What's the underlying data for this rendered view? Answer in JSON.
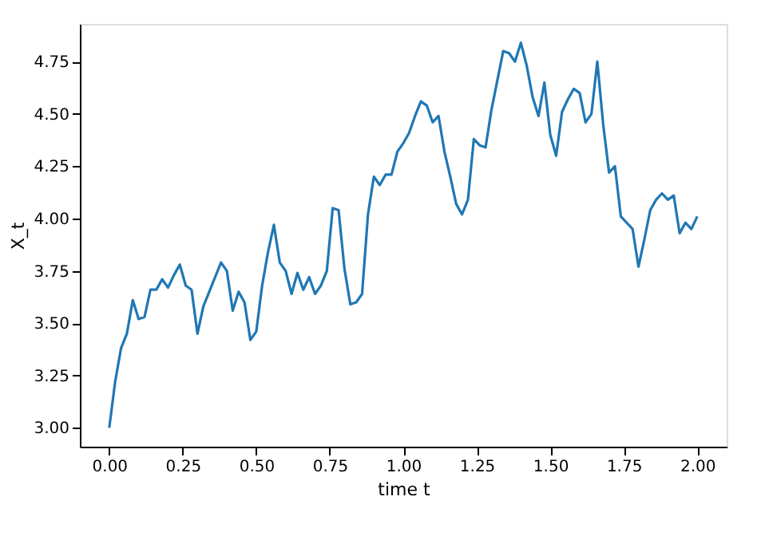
{
  "chart_data": {
    "type": "line",
    "xlabel": "time t",
    "ylabel": "X_t",
    "x": [
      0.0,
      0.02,
      0.04,
      0.06,
      0.08,
      0.1,
      0.12,
      0.14,
      0.16,
      0.18,
      0.2,
      0.22,
      0.24,
      0.26,
      0.28,
      0.3,
      0.32,
      0.34,
      0.36,
      0.38,
      0.4,
      0.42,
      0.44,
      0.46,
      0.48,
      0.5,
      0.52,
      0.54,
      0.56,
      0.58,
      0.6,
      0.62,
      0.64,
      0.66,
      0.68,
      0.7,
      0.72,
      0.74,
      0.76,
      0.78,
      0.8,
      0.82,
      0.84,
      0.86,
      0.88,
      0.9,
      0.92,
      0.94,
      0.96,
      0.98,
      1.0,
      1.02,
      1.04,
      1.06,
      1.08,
      1.1,
      1.12,
      1.14,
      1.16,
      1.18,
      1.2,
      1.22,
      1.24,
      1.26,
      1.28,
      1.3,
      1.32,
      1.34,
      1.36,
      1.38,
      1.4,
      1.42,
      1.44,
      1.46,
      1.48,
      1.5,
      1.52,
      1.54,
      1.56,
      1.58,
      1.6,
      1.62,
      1.64,
      1.66,
      1.68,
      1.7,
      1.72,
      1.74,
      1.76,
      1.78,
      1.8,
      1.82,
      1.84,
      1.86,
      1.88,
      1.9,
      1.92,
      1.94,
      1.96,
      1.98,
      2.0
    ],
    "series": [
      {
        "color": "#1f77b4",
        "values": [
          3.0,
          3.22,
          3.38,
          3.45,
          3.61,
          3.52,
          3.53,
          3.66,
          3.66,
          3.71,
          3.67,
          3.73,
          3.78,
          3.68,
          3.66,
          3.45,
          3.58,
          3.65,
          3.72,
          3.79,
          3.75,
          3.56,
          3.65,
          3.6,
          3.42,
          3.46,
          3.68,
          3.84,
          3.97,
          3.79,
          3.75,
          3.64,
          3.74,
          3.66,
          3.72,
          3.64,
          3.68,
          3.75,
          4.05,
          4.04,
          3.76,
          3.59,
          3.6,
          3.64,
          4.02,
          4.2,
          4.16,
          4.21,
          4.21,
          4.32,
          4.36,
          4.41,
          4.49,
          4.56,
          4.54,
          4.46,
          4.49,
          4.32,
          4.2,
          4.07,
          4.02,
          4.09,
          4.38,
          4.35,
          4.34,
          4.52,
          4.66,
          4.8,
          4.79,
          4.75,
          4.84,
          4.73,
          4.58,
          4.49,
          4.65,
          4.4,
          4.3,
          4.51,
          4.57,
          4.62,
          4.6,
          4.46,
          4.5,
          4.75,
          4.45,
          4.22,
          4.25,
          4.01,
          3.98,
          3.95,
          3.77,
          3.9,
          4.04,
          4.09,
          4.12,
          4.09,
          4.11,
          3.93,
          3.98,
          3.95,
          4.01
        ]
      }
    ],
    "xlim": [
      -0.1,
      2.1
    ],
    "xticks": [
      {
        "value": 0,
        "label": "0.00"
      },
      {
        "value": 0.25,
        "label": "0.25"
      },
      {
        "value": 0.5,
        "label": "0.50"
      },
      {
        "value": 0.75,
        "label": "0.75"
      },
      {
        "value": 1,
        "label": "1.00"
      },
      {
        "value": 1.25,
        "label": "1.25"
      },
      {
        "value": 1.5,
        "label": "1.50"
      },
      {
        "value": 1.75,
        "label": "1.75"
      },
      {
        "value": 2,
        "label": "2.00"
      }
    ],
    "ylim": [
      2.91,
      4.93
    ],
    "yticks": [
      {
        "value": 3,
        "label": "3.00"
      },
      {
        "value": 3.25,
        "label": "3.25"
      },
      {
        "value": 3.5,
        "label": "3.50"
      },
      {
        "value": 3.75,
        "label": "3.75"
      },
      {
        "value": 4,
        "label": "4.00"
      },
      {
        "value": 4.25,
        "label": "4.25"
      },
      {
        "value": 4.5,
        "label": "4.50"
      },
      {
        "value": 4.75,
        "label": "4.75"
      }
    ],
    "grid": false,
    "line_style": "solid",
    "marker": "none"
  }
}
